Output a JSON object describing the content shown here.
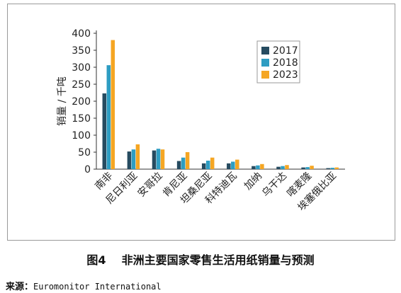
{
  "chart_data": {
    "type": "bar",
    "categories": [
      "南非",
      "尼日利亚",
      "安哥拉",
      "肯尼亚",
      "坦桑尼亚",
      "科特迪瓦",
      "加纳",
      "乌干达",
      "喀麦隆",
      "埃塞俄比亚"
    ],
    "series": [
      {
        "name": "2017",
        "color": "#264b60",
        "values": [
          223,
          52,
          55,
          24,
          17,
          17,
          9,
          7,
          5,
          3
        ]
      },
      {
        "name": "2018",
        "color": "#2e9dc2",
        "values": [
          306,
          58,
          60,
          34,
          25,
          22,
          11,
          9,
          6,
          4
        ]
      },
      {
        "name": "2023",
        "color": "#f5a623",
        "values": [
          380,
          73,
          58,
          50,
          34,
          28,
          15,
          12,
          10,
          5
        ]
      }
    ],
    "ylabel": "销量 / 千吨",
    "ylim": [
      0,
      400
    ],
    "yticks": [
      0,
      50,
      100,
      150,
      200,
      250,
      300,
      350,
      400
    ],
    "grid": false,
    "legend_position": "top-right"
  },
  "caption": {
    "figure_number": "图4",
    "title": "非洲主要国家零售生活用纸销量与预测"
  },
  "source": {
    "label": "来源：",
    "text": "Euromonitor International"
  }
}
